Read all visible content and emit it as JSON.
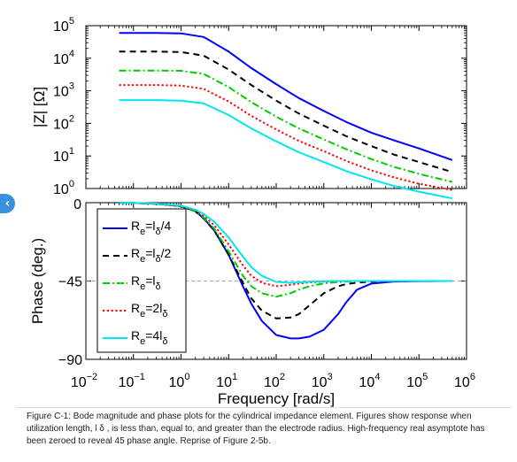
{
  "ui": {
    "nav_arrow": "‹",
    "caption": "Figure C-1: Bode magnitude and phase plots for the cylindrical impedance element. Figures show response when utilization length, l δ , is less than, equal to, and greater than the electrode radius. High-frequency real asymptote has been zeroed to reveal 45 phase angle. Reprise of Figure 2-5b."
  },
  "chart_data": [
    {
      "type": "line",
      "title": "",
      "xlabel": "",
      "ylabel": "|Z| [Ω]",
      "xscale": "log",
      "yscale": "log",
      "xlim": [
        0.01,
        1000000
      ],
      "ylim": [
        1,
        100000
      ],
      "y_ticks": [
        {
          "base": "10",
          "exp": "0"
        },
        {
          "base": "10",
          "exp": "1"
        },
        {
          "base": "10",
          "exp": "2"
        },
        {
          "base": "10",
          "exp": "3"
        },
        {
          "base": "10",
          "exp": "4"
        },
        {
          "base": "10",
          "exp": "5"
        }
      ],
      "extra_y_tick": "0",
      "grid": false,
      "series": [
        {
          "key": "l4",
          "color": "#0000ff",
          "dash": "solid",
          "x": [
            0.05,
            0.1,
            0.3,
            1,
            3,
            10,
            30,
            100,
            300,
            1000,
            3000,
            10000,
            30000,
            100000,
            500000
          ],
          "y": [
            60000,
            60000,
            60000,
            58000,
            45000,
            16000,
            5000,
            1600,
            600,
            240,
            110,
            52,
            30,
            17,
            7.5
          ]
        },
        {
          "key": "l1",
          "color": "#000000",
          "dash": "dashed",
          "x": [
            0.05,
            0.1,
            0.3,
            1,
            3,
            10,
            30,
            100,
            300,
            1000,
            3000,
            10000,
            30000,
            100000,
            500000
          ],
          "y": [
            16000,
            16000,
            16000,
            15500,
            12000,
            4500,
            1500,
            500,
            200,
            85,
            40,
            20,
            11,
            6.5,
            3.2
          ]
        },
        {
          "key": "l2",
          "color": "#00cc00",
          "dash": "dashdot",
          "x": [
            0.05,
            0.1,
            0.3,
            1,
            3,
            10,
            30,
            100,
            300,
            1000,
            3000,
            10000,
            30000,
            100000,
            500000
          ],
          "y": [
            4200,
            4200,
            4200,
            4100,
            3300,
            1300,
            450,
            160,
            70,
            32,
            16,
            8,
            4.6,
            2.8,
            1.6
          ]
        },
        {
          "key": "l3",
          "color": "#ff0000",
          "dash": "dotted",
          "x": [
            0.05,
            0.1,
            0.3,
            1,
            3,
            10,
            30,
            100,
            300,
            1000,
            3000,
            10000,
            30000,
            100000,
            500000
          ],
          "y": [
            1500,
            1500,
            1500,
            1450,
            1150,
            470,
            170,
            65,
            29,
            14,
            7,
            3.6,
            2.2,
            1.4,
            0.9
          ]
        },
        {
          "key": "l5",
          "color": "#00e5ee",
          "dash": "solid",
          "x": [
            0.05,
            0.1,
            0.3,
            1,
            3,
            10,
            30,
            100,
            300,
            1000,
            3000,
            10000,
            30000,
            100000,
            500000
          ],
          "y": [
            520,
            520,
            520,
            500,
            410,
            180,
            70,
            28,
            13,
            6.5,
            3.4,
            1.9,
            1.2,
            0.8,
            0.5
          ]
        }
      ]
    },
    {
      "type": "line",
      "title": "",
      "xlabel": "Frequency [rad/s]",
      "ylabel": "Phase (deg.)",
      "xscale": "log",
      "xlim": [
        0.01,
        1000000
      ],
      "ylim": [
        -90,
        0
      ],
      "y_ticks": [
        "0",
        "−45",
        "−90"
      ],
      "x_ticks": [
        {
          "base": "10",
          "exp": "−2"
        },
        {
          "base": "10",
          "exp": "−1"
        },
        {
          "base": "10",
          "exp": "0"
        },
        {
          "base": "10",
          "exp": "1"
        },
        {
          "base": "10",
          "exp": "2"
        },
        {
          "base": "10",
          "exp": "3"
        },
        {
          "base": "10",
          "exp": "4"
        },
        {
          "base": "10",
          "exp": "5"
        },
        {
          "base": "10",
          "exp": "6"
        }
      ],
      "reference_line": -45,
      "grid": false,
      "legend_position": "top-left",
      "legend": [
        {
          "key": "l4",
          "R": "R",
          "sub": "e",
          "eq": "=l",
          "delta": "δ",
          "suffix": "/4",
          "prefix": ""
        },
        {
          "key": "l1",
          "R": "R",
          "sub": "e",
          "eq": "=l",
          "delta": "δ",
          "suffix": "/2",
          "prefix": ""
        },
        {
          "key": "l2",
          "R": "R",
          "sub": "e",
          "eq": "=l",
          "delta": "δ",
          "suffix": "",
          "prefix": ""
        },
        {
          "key": "l3",
          "R": "R",
          "sub": "e",
          "eq": "=2l",
          "delta": "δ",
          "suffix": "",
          "prefix": ""
        },
        {
          "key": "l5",
          "R": "R",
          "sub": "e",
          "eq": "=4l",
          "delta": "δ",
          "suffix": "",
          "prefix": ""
        }
      ],
      "series": [
        {
          "key": "l4",
          "color": "#0000ff",
          "dash": "solid",
          "x": [
            0.05,
            0.1,
            0.3,
            1,
            2,
            3,
            5,
            10,
            20,
            30,
            50,
            100,
            200,
            300,
            500,
            1000,
            2000,
            3000,
            5000,
            10000,
            30000,
            100000,
            500000
          ],
          "y": [
            -0.1,
            -0.2,
            -0.6,
            -2,
            -5,
            -9,
            -16,
            -30,
            -48,
            -58,
            -68,
            -76,
            -78,
            -78,
            -77,
            -73,
            -64,
            -57,
            -50,
            -46.5,
            -45.3,
            -45.1,
            -45
          ]
        },
        {
          "key": "l1",
          "color": "#000000",
          "dash": "dashed",
          "x": [
            0.05,
            0.1,
            0.3,
            1,
            2,
            3,
            5,
            10,
            20,
            30,
            50,
            100,
            200,
            300,
            500,
            1000,
            2000,
            3000,
            5000,
            10000,
            30000,
            100000,
            500000
          ],
          "y": [
            -0.1,
            -0.2,
            -0.6,
            -2,
            -5,
            -9,
            -16,
            -30,
            -46,
            -55,
            -62,
            -66.5,
            -66,
            -64,
            -59,
            -52,
            -48,
            -46.8,
            -45.9,
            -45.4,
            -45.1,
            -45,
            -45
          ]
        },
        {
          "key": "l2",
          "color": "#00cc00",
          "dash": "dashdot",
          "x": [
            0.05,
            0.1,
            0.3,
            1,
            2,
            3,
            5,
            10,
            20,
            30,
            50,
            100,
            200,
            300,
            500,
            1000,
            2000,
            3000,
            5000,
            10000,
            30000,
            100000,
            500000
          ],
          "y": [
            -0.1,
            -0.2,
            -0.6,
            -2,
            -5,
            -8.5,
            -15,
            -28,
            -42,
            -48,
            -52,
            -54,
            -52,
            -50,
            -48,
            -46.3,
            -45.6,
            -45.3,
            -45.1,
            -45,
            -45,
            -45,
            -45
          ]
        },
        {
          "key": "l3",
          "color": "#ff0000",
          "dash": "dotted",
          "x": [
            0.05,
            0.1,
            0.3,
            1,
            2,
            3,
            5,
            10,
            20,
            30,
            50,
            100,
            200,
            300,
            500,
            1000,
            2000,
            3000,
            5000,
            10000,
            30000,
            100000,
            500000
          ],
          "y": [
            -0.1,
            -0.2,
            -0.6,
            -2,
            -4.5,
            -7.5,
            -13,
            -24,
            -36,
            -42,
            -46,
            -48,
            -47.2,
            -46.5,
            -45.8,
            -45.3,
            -45.1,
            -45,
            -45,
            -45,
            -45,
            -45,
            -45
          ]
        },
        {
          "key": "l5",
          "color": "#00e5ee",
          "dash": "solid",
          "x": [
            0.05,
            0.1,
            0.3,
            1,
            2,
            3,
            5,
            10,
            20,
            30,
            50,
            100,
            200,
            300,
            500,
            1000,
            2000,
            3000,
            5000,
            10000,
            30000,
            100000,
            500000
          ],
          "y": [
            -0.1,
            -0.2,
            -0.5,
            -1.7,
            -4,
            -6.5,
            -11,
            -20,
            -31,
            -37,
            -42,
            -45.5,
            -46,
            -45.8,
            -45.4,
            -45.1,
            -45,
            -45,
            -45,
            -45,
            -45,
            -45,
            -45
          ]
        }
      ]
    }
  ]
}
